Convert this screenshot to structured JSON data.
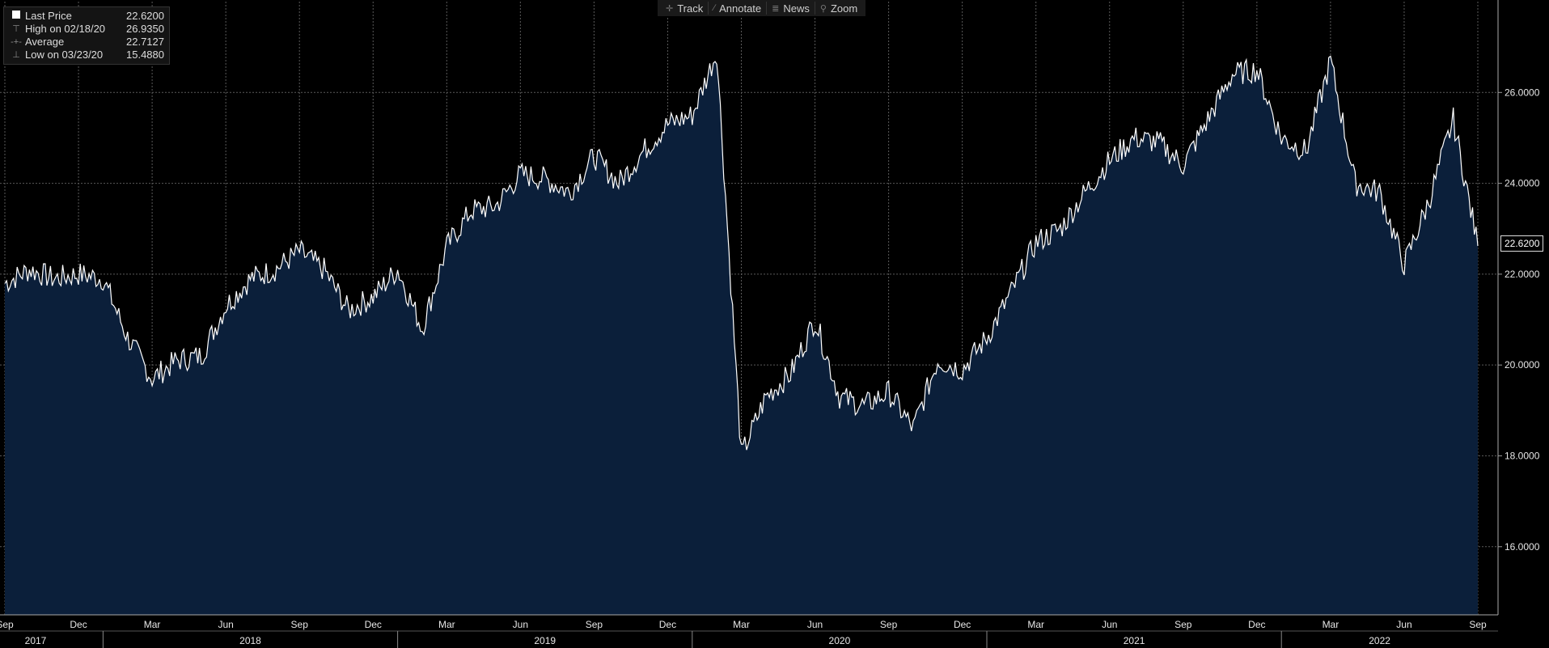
{
  "toolbar": {
    "track_label": "Track",
    "annotate_label": "Annotate",
    "news_label": "News",
    "zoom_label": "Zoom"
  },
  "legend": {
    "last": {
      "label": "Last Price",
      "value": "22.6200"
    },
    "high": {
      "label": "High on 02/18/20",
      "value": "26.9350"
    },
    "average": {
      "label": "Average",
      "value": "22.7127"
    },
    "low": {
      "label": "Low on 03/23/20",
      "value": "15.4880"
    }
  },
  "last_value_tag": "22.6200",
  "colors": {
    "background": "#000000",
    "area_fill": "#0b1f3a",
    "line": "#ffffff",
    "grid": "#5a5a5a",
    "axis_text": "#e6e6e6"
  },
  "chart_data": {
    "type": "area",
    "x_unit": "date (monthly)",
    "x": [
      "2017-09",
      "2017-10",
      "2017-11",
      "2017-12",
      "2018-01",
      "2018-02",
      "2018-03",
      "2018-04",
      "2018-05",
      "2018-06",
      "2018-07",
      "2018-08",
      "2018-09",
      "2018-10",
      "2018-11",
      "2018-12",
      "2019-01",
      "2019-02",
      "2019-03",
      "2019-04",
      "2019-05",
      "2019-06",
      "2019-07",
      "2019-08",
      "2019-09",
      "2019-10",
      "2019-11",
      "2019-12",
      "2020-01",
      "2020-02",
      "2020-03",
      "2020-04",
      "2020-05",
      "2020-06",
      "2020-07",
      "2020-08",
      "2020-09",
      "2020-10",
      "2020-11",
      "2020-12",
      "2021-01",
      "2021-02",
      "2021-03",
      "2021-04",
      "2021-05",
      "2021-06",
      "2021-07",
      "2021-08",
      "2021-09",
      "2021-10",
      "2021-11",
      "2021-12",
      "2022-01",
      "2022-02",
      "2022-03",
      "2022-04",
      "2022-05",
      "2022-06",
      "2022-07",
      "2022-08",
      "2022-09"
    ],
    "y": [
      21.8,
      22.1,
      21.9,
      22.0,
      21.9,
      20.6,
      19.7,
      20.1,
      20.2,
      21.3,
      21.9,
      22.1,
      22.5,
      22.1,
      21.2,
      21.5,
      22.1,
      20.8,
      22.6,
      23.4,
      23.5,
      24.2,
      24.1,
      23.8,
      24.6,
      24.0,
      24.7,
      25.3,
      25.5,
      26.9,
      18.0,
      19.3,
      19.8,
      21.0,
      19.3,
      19.1,
      19.4,
      18.6,
      20.1,
      19.9,
      20.6,
      21.6,
      22.7,
      23.0,
      23.8,
      24.5,
      25.0,
      24.9,
      24.4,
      25.4,
      26.4,
      26.5,
      25.0,
      24.7,
      26.7,
      24.0,
      23.8,
      22.2,
      23.6,
      25.4,
      22.62
    ],
    "ylim": [
      14.5,
      28.0
    ],
    "y_ticks": [
      "16.0000",
      "18.0000",
      "20.0000",
      "22.0000",
      "24.0000",
      "26.0000"
    ],
    "x_month_ticks": [
      "Sep",
      "Dec",
      "Mar",
      "Jun",
      "Sep",
      "Dec",
      "Mar",
      "Jun",
      "Sep",
      "Dec",
      "Mar",
      "Jun",
      "Sep",
      "Dec",
      "Mar",
      "Jun",
      "Sep",
      "Dec",
      "Mar",
      "Jun",
      "Sep"
    ],
    "x_year_labels": [
      "2017",
      "2018",
      "2019",
      "2020",
      "2021",
      "2022"
    ],
    "grid": true
  }
}
